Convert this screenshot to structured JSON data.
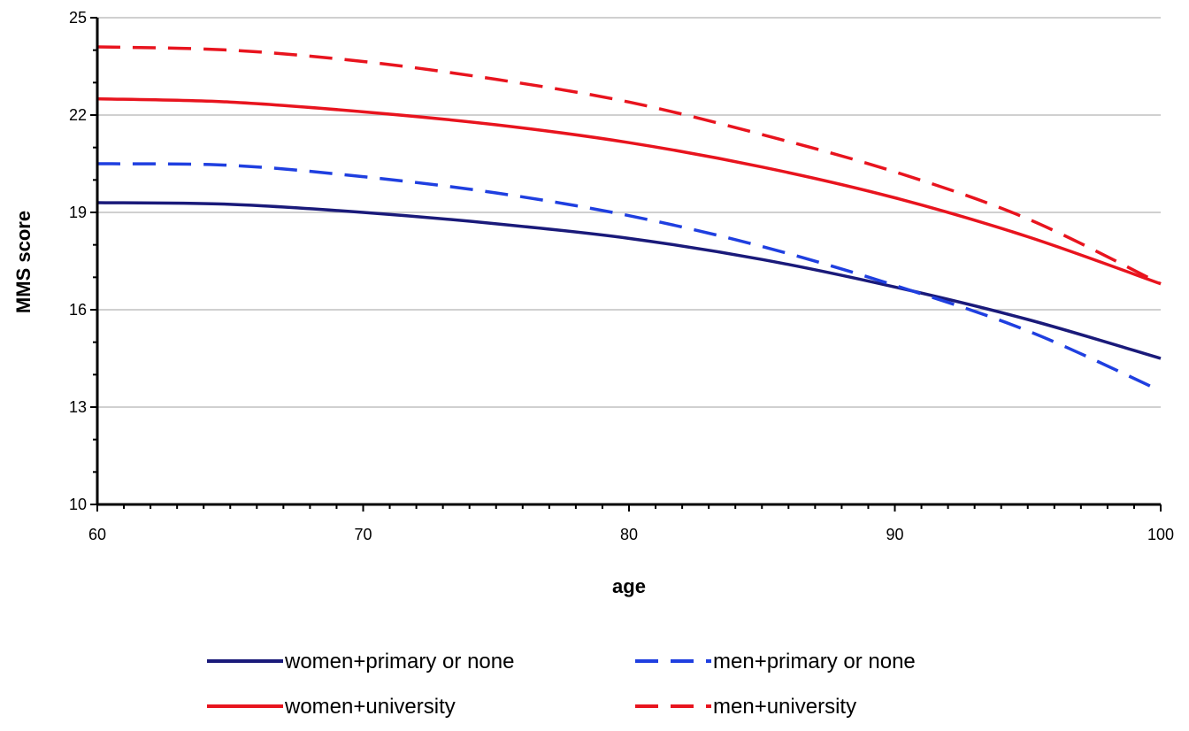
{
  "chart_data": {
    "type": "line",
    "title": "",
    "xlabel": "age",
    "ylabel": "MMS score",
    "xlim": [
      60,
      100
    ],
    "ylim": [
      10,
      25
    ],
    "xticks": [
      "60",
      "70",
      "80",
      "90",
      "100"
    ],
    "yticks": [
      "10",
      "13",
      "16",
      "19",
      "22",
      "25"
    ],
    "grid": "horizontal",
    "legend_position": "bottom",
    "x": [
      60,
      65,
      70,
      75,
      80,
      85,
      90,
      95,
      100
    ],
    "series": [
      {
        "name": "women+primary or none",
        "color": "#1a1a7a",
        "dash": "solid",
        "values": [
          19.3,
          19.25,
          19.0,
          18.65,
          18.2,
          17.55,
          16.7,
          15.7,
          14.5
        ]
      },
      {
        "name": "men+primary or none",
        "color": "#1f3fe0",
        "dash": "dashed",
        "values": [
          20.5,
          20.45,
          20.1,
          19.6,
          18.9,
          17.95,
          16.75,
          15.35,
          13.5
        ]
      },
      {
        "name": "women+university",
        "color": "#e8141e",
        "dash": "solid",
        "values": [
          22.5,
          22.4,
          22.1,
          21.7,
          21.15,
          20.4,
          19.45,
          18.25,
          16.8
        ]
      },
      {
        "name": "men+university",
        "color": "#e8141e",
        "dash": "dashed",
        "values": [
          24.1,
          24.0,
          23.65,
          23.1,
          22.4,
          21.4,
          20.25,
          18.8,
          16.8
        ]
      }
    ]
  }
}
